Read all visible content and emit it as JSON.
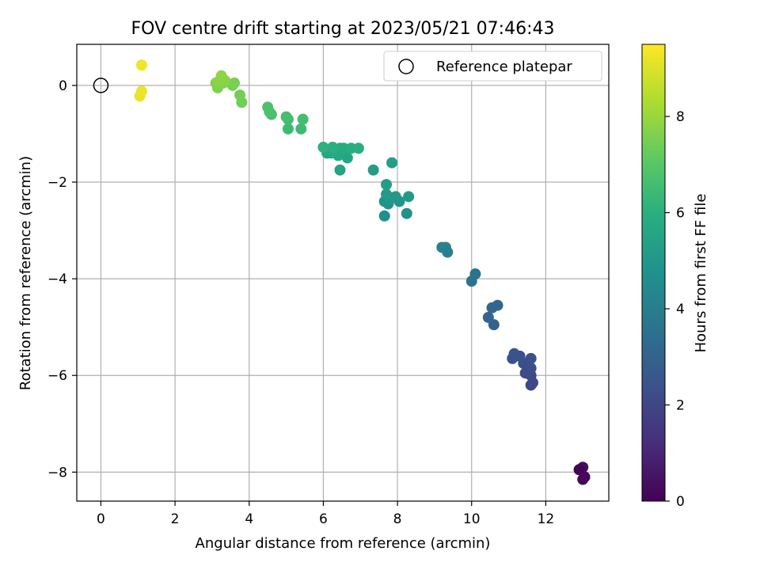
{
  "chart_data": {
    "type": "scatter",
    "title": "FOV centre drift starting at 2023/05/21 07:46:43",
    "xlabel": "Angular distance from reference (arcmin)",
    "ylabel": "Rotation from reference (arcmin)",
    "xlim": [
      -0.65,
      13.7
    ],
    "ylim": [
      -8.6,
      0.85
    ],
    "xticks": [
      0,
      2,
      4,
      6,
      8,
      10,
      12
    ],
    "yticks": [
      0,
      -2,
      -4,
      -6,
      -8
    ],
    "grid": true,
    "legend": {
      "position": "top-right",
      "entries": [
        "Reference platepar"
      ]
    },
    "reference_point": {
      "x": 0,
      "y": 0
    },
    "colorbar": {
      "label": "Hours from first FF file",
      "min": 0,
      "max": 9.5,
      "ticks": [
        0,
        2,
        4,
        6,
        8
      ],
      "colormap": "viridis"
    },
    "points": [
      {
        "x": 13.0,
        "y": -8.15,
        "c": 0.15
      },
      {
        "x": 13.05,
        "y": -8.1,
        "c": 0.2
      },
      {
        "x": 12.95,
        "y": -7.95,
        "c": 0.3
      },
      {
        "x": 13.0,
        "y": -7.9,
        "c": 0.35
      },
      {
        "x": 12.9,
        "y": -7.95,
        "c": 0.1
      },
      {
        "x": 11.6,
        "y": -6.2,
        "c": 2.0
      },
      {
        "x": 11.65,
        "y": -6.15,
        "c": 2.05
      },
      {
        "x": 11.6,
        "y": -6.0,
        "c": 2.1
      },
      {
        "x": 11.45,
        "y": -5.95,
        "c": 2.15
      },
      {
        "x": 11.6,
        "y": -5.85,
        "c": 2.2
      },
      {
        "x": 11.4,
        "y": -5.75,
        "c": 2.25
      },
      {
        "x": 11.6,
        "y": -5.65,
        "c": 2.3
      },
      {
        "x": 11.3,
        "y": -5.6,
        "c": 2.35
      },
      {
        "x": 11.15,
        "y": -5.55,
        "c": 2.4
      },
      {
        "x": 11.1,
        "y": -5.65,
        "c": 2.45
      },
      {
        "x": 10.6,
        "y": -4.95,
        "c": 3.0
      },
      {
        "x": 10.45,
        "y": -4.8,
        "c": 3.05
      },
      {
        "x": 10.55,
        "y": -4.6,
        "c": 3.1
      },
      {
        "x": 10.7,
        "y": -4.55,
        "c": 3.15
      },
      {
        "x": 10.0,
        "y": -4.05,
        "c": 3.6
      },
      {
        "x": 10.1,
        "y": -3.9,
        "c": 3.65
      },
      {
        "x": 9.3,
        "y": -3.35,
        "c": 4.1
      },
      {
        "x": 9.35,
        "y": -3.45,
        "c": 4.15
      },
      {
        "x": 9.2,
        "y": -3.35,
        "c": 4.2
      },
      {
        "x": 7.65,
        "y": -2.7,
        "c": 4.7
      },
      {
        "x": 8.25,
        "y": -2.65,
        "c": 4.75
      },
      {
        "x": 7.75,
        "y": -2.45,
        "c": 4.8
      },
      {
        "x": 7.65,
        "y": -2.4,
        "c": 4.85
      },
      {
        "x": 8.05,
        "y": -2.4,
        "c": 4.9
      },
      {
        "x": 7.8,
        "y": -2.35,
        "c": 4.95
      },
      {
        "x": 7.75,
        "y": -2.3,
        "c": 5.0
      },
      {
        "x": 7.95,
        "y": -2.3,
        "c": 5.05
      },
      {
        "x": 8.3,
        "y": -2.3,
        "c": 5.1
      },
      {
        "x": 7.7,
        "y": -2.25,
        "c": 5.15
      },
      {
        "x": 7.7,
        "y": -2.05,
        "c": 5.2
      },
      {
        "x": 7.35,
        "y": -1.75,
        "c": 5.25
      },
      {
        "x": 7.85,
        "y": -1.6,
        "c": 5.3
      },
      {
        "x": 6.45,
        "y": -1.75,
        "c": 5.5
      },
      {
        "x": 6.65,
        "y": -1.5,
        "c": 5.55
      },
      {
        "x": 6.1,
        "y": -1.4,
        "c": 5.6
      },
      {
        "x": 6.2,
        "y": -1.4,
        "c": 5.65
      },
      {
        "x": 6.4,
        "y": -1.45,
        "c": 5.7
      },
      {
        "x": 6.3,
        "y": -1.35,
        "c": 5.75
      },
      {
        "x": 6.45,
        "y": -1.3,
        "c": 5.8
      },
      {
        "x": 6.55,
        "y": -1.3,
        "c": 5.85
      },
      {
        "x": 6.75,
        "y": -1.3,
        "c": 5.9
      },
      {
        "x": 6.95,
        "y": -1.3,
        "c": 5.95
      },
      {
        "x": 6.25,
        "y": -1.28,
        "c": 6.0
      },
      {
        "x": 6.0,
        "y": -1.28,
        "c": 6.05
      },
      {
        "x": 5.05,
        "y": -0.9,
        "c": 6.4
      },
      {
        "x": 5.4,
        "y": -0.9,
        "c": 6.45
      },
      {
        "x": 5.05,
        "y": -0.7,
        "c": 6.5
      },
      {
        "x": 5.45,
        "y": -0.7,
        "c": 6.55
      },
      {
        "x": 5.0,
        "y": -0.65,
        "c": 6.6
      },
      {
        "x": 4.6,
        "y": -0.6,
        "c": 6.65
      },
      {
        "x": 4.55,
        "y": -0.55,
        "c": 6.7
      },
      {
        "x": 4.5,
        "y": -0.45,
        "c": 6.75
      },
      {
        "x": 3.8,
        "y": -0.35,
        "c": 7.4
      },
      {
        "x": 3.75,
        "y": -0.2,
        "c": 7.45
      },
      {
        "x": 3.55,
        "y": 0.0,
        "c": 7.5
      },
      {
        "x": 3.6,
        "y": 0.05,
        "c": 7.55
      },
      {
        "x": 3.15,
        "y": -0.05,
        "c": 7.6
      },
      {
        "x": 3.3,
        "y": 0.05,
        "c": 7.65
      },
      {
        "x": 3.1,
        "y": 0.05,
        "c": 7.7
      },
      {
        "x": 3.35,
        "y": 0.1,
        "c": 7.75
      },
      {
        "x": 3.2,
        "y": 0.1,
        "c": 7.8
      },
      {
        "x": 3.25,
        "y": 0.2,
        "c": 7.85
      },
      {
        "x": 1.05,
        "y": -0.22,
        "c": 9.2
      },
      {
        "x": 1.1,
        "y": -0.12,
        "c": 9.25
      },
      {
        "x": 1.1,
        "y": 0.42,
        "c": 9.3
      }
    ]
  }
}
